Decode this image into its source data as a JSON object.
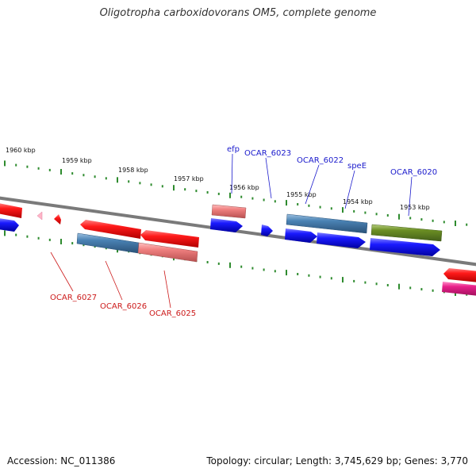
{
  "title": "Oligotropha carboxidovorans OM5, complete genome",
  "footer": {
    "accession": "Accession: NC_011386",
    "summary": "Topology: circular; Length: 3,745,629 bp; Genes: 3,770"
  },
  "scale_labels": [
    "1960 kbp",
    "1959 kbp",
    "1958 kbp",
    "1957 kbp",
    "1956 kbp",
    "1955 kbp",
    "1954 kbp",
    "1953 kbp"
  ],
  "gene_labels_top": [
    "efp",
    "OCAR_6023",
    "OCAR_6022",
    "speE",
    "OCAR_6020"
  ],
  "gene_labels_bottom": [
    "OCAR_6027",
    "OCAR_6026",
    "OCAR_6025"
  ],
  "colors": {
    "backbone": "#7a7a7a",
    "tick": "#2e8b2e",
    "red": "#ff1a1a",
    "pink": "#f08080",
    "steelblue": "#4a82b4",
    "blue": "#1a1aff",
    "olive": "#6b8e23",
    "magenta": "#e8208a",
    "label_blue": "#1a1acc",
    "label_red": "#cc1a1a"
  }
}
